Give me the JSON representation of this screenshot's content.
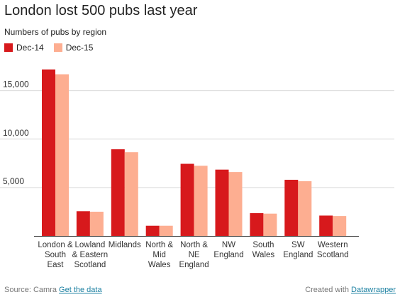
{
  "chart_data": {
    "type": "bar",
    "title": "London lost 500 pubs last year",
    "subtitle": "Numbers of pubs by region",
    "categories": [
      "London & South East",
      "Lowland & Eastern Scotland",
      "Midlands",
      "North & Mid Wales",
      "North & NE England",
      "NW England",
      "South Wales",
      "SW England",
      "Western Scotland"
    ],
    "category_lines": [
      [
        "London &",
        "South",
        "East"
      ],
      [
        "Lowland",
        "& Eastern",
        "Scotland"
      ],
      [
        "Midlands"
      ],
      [
        "North &",
        "Mid",
        "Wales"
      ],
      [
        "North &",
        "NE",
        "England"
      ],
      [
        "NW",
        "England"
      ],
      [
        "South",
        "Wales"
      ],
      [
        "SW",
        "England"
      ],
      [
        "Western",
        "Scotland"
      ]
    ],
    "series": [
      {
        "name": "Dec-14",
        "color": "#d7191c",
        "values": [
          17200,
          2550,
          8950,
          1050,
          7450,
          6850,
          2350,
          5800,
          2100
        ]
      },
      {
        "name": "Dec-15",
        "color": "#fdae91",
        "values": [
          16700,
          2500,
          8650,
          1050,
          7250,
          6600,
          2300,
          5650,
          2050
        ]
      }
    ],
    "yticks": [
      5000,
      10000,
      15000
    ],
    "ytick_labels": [
      "5,000",
      "10,000",
      "15,000"
    ],
    "ylim": [
      0,
      18500
    ],
    "grid": true,
    "legend": "top-left"
  },
  "footer": {
    "source_prefix": "Source: Camra",
    "source_link": "Get the data",
    "credit_prefix": "Created with",
    "credit_link": "Datawrapper"
  }
}
